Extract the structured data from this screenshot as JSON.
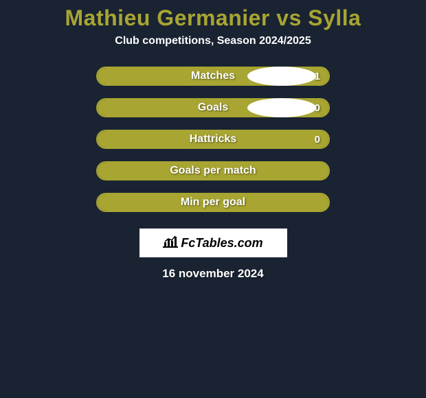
{
  "header": {
    "title": "Mathieu Germanier vs Sylla",
    "subtitle": "Club competitions, Season 2024/2025",
    "title_color": "#a8a532",
    "subtitle_color": "#ffffff"
  },
  "theme": {
    "background_color": "#1a2332",
    "accent_color": "#a8a532",
    "text_color": "#ffffff",
    "oval_left_color": "#ffffff",
    "oval_right_color": "#ffffff"
  },
  "stats": [
    {
      "label": "Matches",
      "value_right": "1",
      "fill_pct": 100,
      "show_ovals": true,
      "show_value": true
    },
    {
      "label": "Goals",
      "value_right": "0",
      "fill_pct": 100,
      "show_ovals": true,
      "show_value": true
    },
    {
      "label": "Hattricks",
      "value_right": "0",
      "fill_pct": 100,
      "show_ovals": false,
      "show_value": true
    },
    {
      "label": "Goals per match",
      "value_right": "",
      "fill_pct": 100,
      "show_ovals": false,
      "show_value": false
    },
    {
      "label": "Min per goal",
      "value_right": "",
      "fill_pct": 100,
      "show_ovals": false,
      "show_value": false
    }
  ],
  "branding": {
    "logo_text": "FcTables.com"
  },
  "footer": {
    "date_text": "16 november 2024"
  }
}
